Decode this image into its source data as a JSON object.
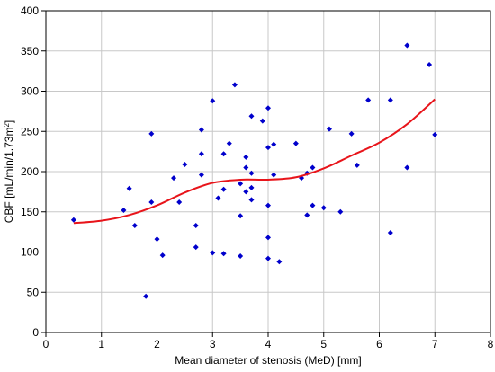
{
  "chart_data": {
    "type": "scatter",
    "title": "",
    "xlabel": "Mean diameter of stenosis (MeD) [mm]",
    "ylabel": {
      "main": "CBF [mL/min/1.73m",
      "sup": "2",
      "end": "]"
    },
    "xlim": [
      0,
      8
    ],
    "ylim": [
      0,
      400
    ],
    "xticks": [
      0,
      1,
      2,
      3,
      4,
      5,
      6,
      7,
      8
    ],
    "yticks": [
      0,
      50,
      100,
      150,
      200,
      250,
      300,
      350,
      400
    ],
    "grid": true,
    "legend": "none",
    "colors": {
      "points": "#0000cc",
      "fit": "#e8141a",
      "grid": "#c8c8c8",
      "axis": "#000000"
    },
    "series": [
      {
        "kind": "scatter",
        "points": [
          [
            0.5,
            140
          ],
          [
            1.4,
            152
          ],
          [
            1.5,
            179
          ],
          [
            1.6,
            133
          ],
          [
            1.8,
            45
          ],
          [
            1.9,
            162
          ],
          [
            1.9,
            247
          ],
          [
            2.0,
            116
          ],
          [
            2.1,
            96
          ],
          [
            2.3,
            192
          ],
          [
            2.4,
            162
          ],
          [
            2.5,
            209
          ],
          [
            2.7,
            133
          ],
          [
            2.7,
            106
          ],
          [
            2.8,
            252
          ],
          [
            2.8,
            222
          ],
          [
            2.8,
            196
          ],
          [
            3.0,
            288
          ],
          [
            3.0,
            99
          ],
          [
            3.1,
            167
          ],
          [
            3.2,
            222
          ],
          [
            3.2,
            178
          ],
          [
            3.2,
            98
          ],
          [
            3.3,
            235
          ],
          [
            3.4,
            308
          ],
          [
            3.5,
            185
          ],
          [
            3.5,
            145
          ],
          [
            3.5,
            95
          ],
          [
            3.6,
            218
          ],
          [
            3.6,
            205
          ],
          [
            3.6,
            175
          ],
          [
            3.7,
            269
          ],
          [
            3.7,
            198
          ],
          [
            3.7,
            165
          ],
          [
            3.7,
            180
          ],
          [
            3.9,
            263
          ],
          [
            4.0,
            279
          ],
          [
            4.0,
            230
          ],
          [
            4.0,
            158
          ],
          [
            4.0,
            118
          ],
          [
            4.0,
            92
          ],
          [
            4.1,
            234
          ],
          [
            4.1,
            196
          ],
          [
            4.2,
            88
          ],
          [
            4.5,
            235
          ],
          [
            4.6,
            192
          ],
          [
            4.7,
            198
          ],
          [
            4.7,
            146
          ],
          [
            4.8,
            205
          ],
          [
            4.8,
            158
          ],
          [
            5.0,
            155
          ],
          [
            5.1,
            253
          ],
          [
            5.3,
            150
          ],
          [
            5.5,
            247
          ],
          [
            5.6,
            208
          ],
          [
            5.8,
            289
          ],
          [
            6.2,
            289
          ],
          [
            6.2,
            124
          ],
          [
            6.5,
            357
          ],
          [
            6.5,
            205
          ],
          [
            6.9,
            333
          ],
          [
            7.0,
            246
          ]
        ]
      },
      {
        "kind": "line",
        "points": [
          [
            0.5,
            136
          ],
          [
            1.0,
            139
          ],
          [
            1.5,
            146
          ],
          [
            2.0,
            158
          ],
          [
            2.5,
            174
          ],
          [
            3.0,
            186
          ],
          [
            3.5,
            190
          ],
          [
            4.0,
            190
          ],
          [
            4.5,
            193
          ],
          [
            5.0,
            204
          ],
          [
            5.5,
            220
          ],
          [
            6.0,
            236
          ],
          [
            6.5,
            259
          ],
          [
            7.0,
            290
          ]
        ]
      }
    ]
  }
}
